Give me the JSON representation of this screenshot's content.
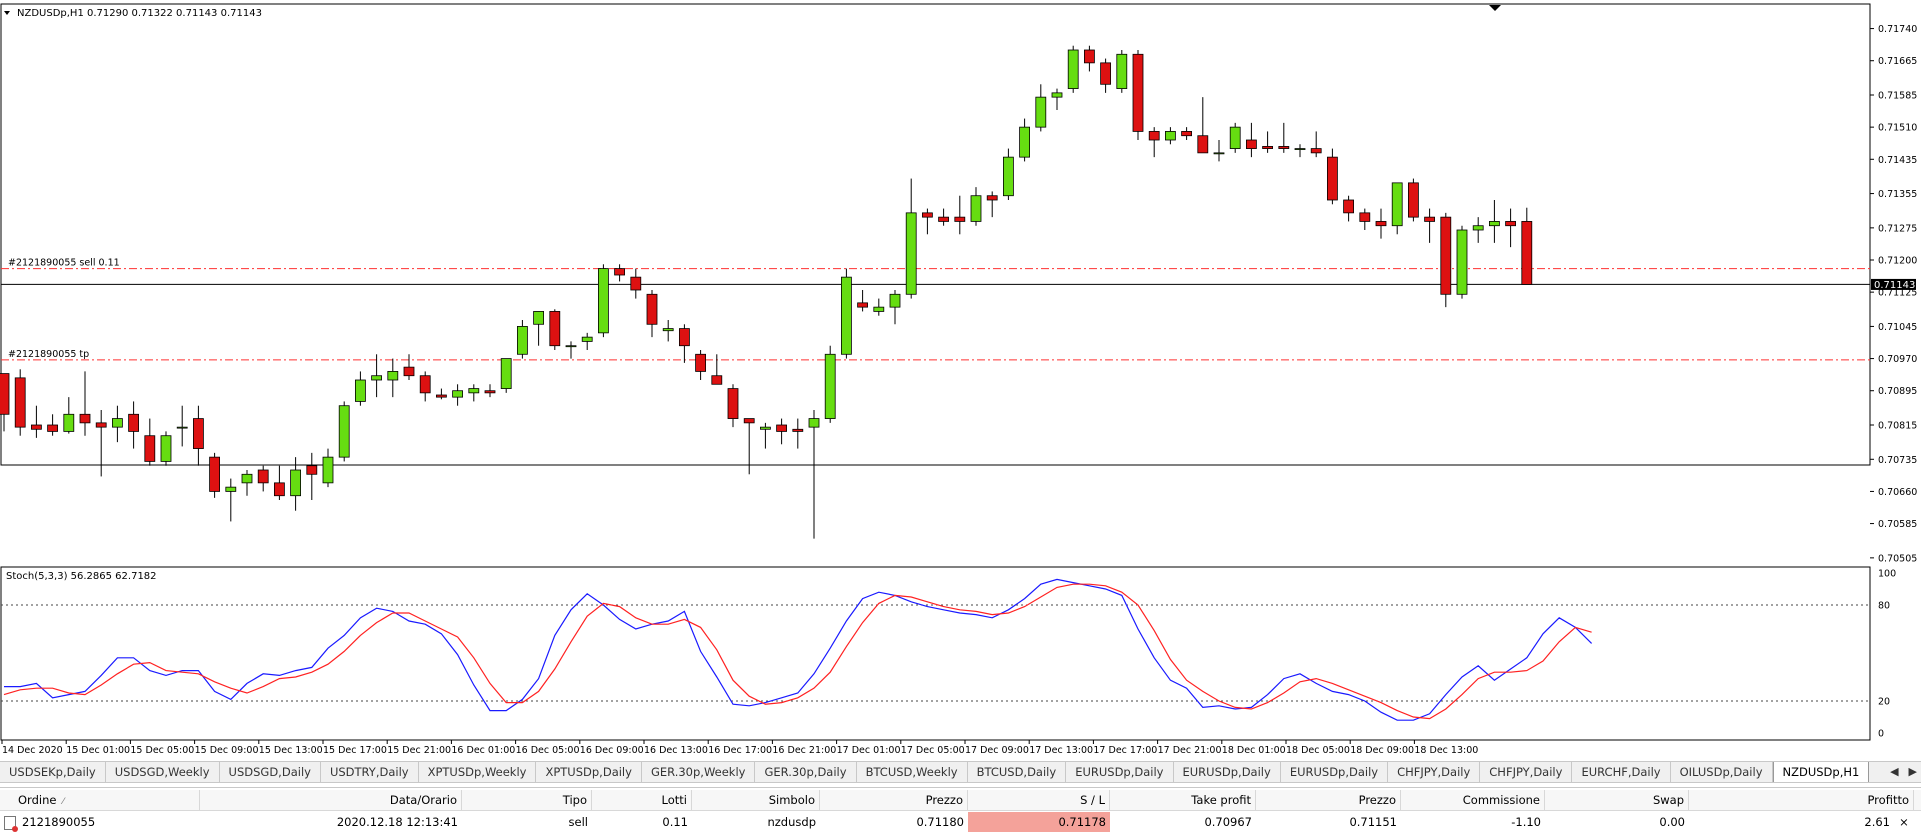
{
  "chart": {
    "symbol_header": "NZDUSDp,H1  0.71290 0.71322 0.71143 0.71143",
    "order_line_label": "#2121890055 sell 0.11",
    "tp_line_label": "#2121890055 tp",
    "current_price_label": "0.71143",
    "price_axis_labels": [
      "0.71740",
      "0.71665",
      "0.71585",
      "0.71510",
      "0.71435",
      "0.71355",
      "0.71275",
      "0.71200",
      "0.71125",
      "0.71045",
      "0.70970",
      "0.70895",
      "0.70815",
      "0.70735",
      "0.70660",
      "0.70585",
      "0.70505"
    ],
    "stoch_header": "Stoch(5,3,3) 56.2865 62.7182",
    "stoch_axis_labels": [
      "100",
      "80",
      "20",
      "0"
    ],
    "time_labels": [
      "14 Dec 2020",
      "15 Dec 01:00",
      "15 Dec 05:00",
      "15 Dec 09:00",
      "15 Dec 13:00",
      "15 Dec 17:00",
      "15 Dec 21:00",
      "16 Dec 01:00",
      "16 Dec 05:00",
      "16 Dec 09:00",
      "16 Dec 13:00",
      "16 Dec 17:00",
      "16 Dec 21:00",
      "17 Dec 01:00",
      "17 Dec 05:00",
      "17 Dec 09:00",
      "17 Dec 13:00",
      "17 Dec 17:00",
      "17 Dec 21:00",
      "18 Dec 01:00",
      "18 Dec 05:00",
      "18 Dec 09:00",
      "18 Dec 13:00"
    ],
    "colors": {
      "bull": "#66dd11",
      "bear": "#dd1111",
      "main_line": "#1a1aff",
      "signal_line": "#ff2222",
      "order_line": "#ff3030"
    },
    "sell_price": 0.7118,
    "tp_price": 0.70967,
    "last_price": 0.71143,
    "bars": [
      [
        0.70935,
        0.70935,
        0.708,
        0.7084
      ],
      [
        0.70925,
        0.70945,
        0.7079,
        0.7081
      ],
      [
        0.70815,
        0.7086,
        0.70785,
        0.70805
      ],
      [
        0.70815,
        0.7084,
        0.7079,
        0.708
      ],
      [
        0.708,
        0.7088,
        0.70795,
        0.7084
      ],
      [
        0.7084,
        0.7094,
        0.7079,
        0.7082
      ],
      [
        0.7082,
        0.7085,
        0.70695,
        0.7081
      ],
      [
        0.7081,
        0.7086,
        0.70775,
        0.7083
      ],
      [
        0.7084,
        0.7087,
        0.7076,
        0.708
      ],
      [
        0.7079,
        0.7083,
        0.7072,
        0.7073
      ],
      [
        0.7073,
        0.708,
        0.7072,
        0.7079
      ],
      [
        0.7081,
        0.7086,
        0.70765,
        0.7081
      ],
      [
        0.7083,
        0.7086,
        0.7072,
        0.7076
      ],
      [
        0.7074,
        0.7075,
        0.70645,
        0.7066
      ],
      [
        0.7066,
        0.7069,
        0.7059,
        0.7067
      ],
      [
        0.7068,
        0.7071,
        0.7065,
        0.707
      ],
      [
        0.7071,
        0.7072,
        0.7066,
        0.7068
      ],
      [
        0.7068,
        0.7072,
        0.7064,
        0.7065
      ],
      [
        0.7065,
        0.7074,
        0.70615,
        0.7071
      ],
      [
        0.7072,
        0.7075,
        0.7064,
        0.707
      ],
      [
        0.7068,
        0.7076,
        0.7067,
        0.7074
      ],
      [
        0.7074,
        0.7087,
        0.7073,
        0.7086
      ],
      [
        0.7087,
        0.7094,
        0.7086,
        0.7092
      ],
      [
        0.7092,
        0.7098,
        0.7088,
        0.7093
      ],
      [
        0.7092,
        0.7097,
        0.7088,
        0.7094
      ],
      [
        0.7095,
        0.7098,
        0.7092,
        0.7093
      ],
      [
        0.7093,
        0.7094,
        0.7087,
        0.7089
      ],
      [
        0.70885,
        0.709,
        0.70875,
        0.7088
      ],
      [
        0.7088,
        0.7091,
        0.7086,
        0.70895
      ],
      [
        0.7089,
        0.7091,
        0.7087,
        0.709
      ],
      [
        0.70895,
        0.7091,
        0.7088,
        0.7089
      ],
      [
        0.709,
        0.7097,
        0.7089,
        0.7097
      ],
      [
        0.7098,
        0.7106,
        0.7097,
        0.71045
      ],
      [
        0.7105,
        0.7108,
        0.71,
        0.7108
      ],
      [
        0.7108,
        0.71085,
        0.7099,
        0.71
      ],
      [
        0.71,
        0.7101,
        0.7097,
        0.71
      ],
      [
        0.7101,
        0.7103,
        0.7099,
        0.7102
      ],
      [
        0.7103,
        0.7119,
        0.7102,
        0.7118
      ],
      [
        0.7118,
        0.7119,
        0.7115,
        0.71165
      ],
      [
        0.7116,
        0.7118,
        0.7111,
        0.7113
      ],
      [
        0.7112,
        0.7113,
        0.7102,
        0.7105
      ],
      [
        0.71035,
        0.7106,
        0.7101,
        0.7104
      ],
      [
        0.7104,
        0.7105,
        0.7096,
        0.71
      ],
      [
        0.7098,
        0.7099,
        0.7092,
        0.7094
      ],
      [
        0.7093,
        0.7098,
        0.7091,
        0.7091
      ],
      [
        0.709,
        0.7091,
        0.7081,
        0.7083
      ],
      [
        0.7083,
        0.7083,
        0.707,
        0.7082
      ],
      [
        0.70805,
        0.7082,
        0.7076,
        0.7081
      ],
      [
        0.70815,
        0.7083,
        0.7077,
        0.708
      ],
      [
        0.70805,
        0.7083,
        0.7076,
        0.708
      ],
      [
        0.7081,
        0.7085,
        0.7055,
        0.7083
      ],
      [
        0.7083,
        0.71,
        0.7082,
        0.7098
      ],
      [
        0.7098,
        0.7118,
        0.7097,
        0.7116
      ],
      [
        0.711,
        0.7113,
        0.7108,
        0.7109
      ],
      [
        0.7108,
        0.7111,
        0.7107,
        0.7109
      ],
      [
        0.7109,
        0.7113,
        0.7105,
        0.7112
      ],
      [
        0.7112,
        0.7139,
        0.7111,
        0.7131
      ],
      [
        0.7131,
        0.7132,
        0.7126,
        0.713
      ],
      [
        0.713,
        0.7132,
        0.7128,
        0.7129
      ],
      [
        0.713,
        0.7135,
        0.7126,
        0.7129
      ],
      [
        0.7129,
        0.7137,
        0.7128,
        0.7135
      ],
      [
        0.7135,
        0.7136,
        0.713,
        0.7134
      ],
      [
        0.7135,
        0.7146,
        0.7134,
        0.7144
      ],
      [
        0.7144,
        0.7153,
        0.7143,
        0.7151
      ],
      [
        0.7151,
        0.7161,
        0.715,
        0.7158
      ],
      [
        0.7158,
        0.716,
        0.7155,
        0.7159
      ],
      [
        0.716,
        0.717,
        0.7159,
        0.7169
      ],
      [
        0.7169,
        0.717,
        0.7164,
        0.7166
      ],
      [
        0.7166,
        0.7167,
        0.7159,
        0.7161
      ],
      [
        0.716,
        0.7169,
        0.7159,
        0.7168
      ],
      [
        0.7168,
        0.7169,
        0.7148,
        0.715
      ],
      [
        0.715,
        0.7151,
        0.7144,
        0.7148
      ],
      [
        0.7148,
        0.7151,
        0.7147,
        0.715
      ],
      [
        0.715,
        0.7151,
        0.7148,
        0.7149
      ],
      [
        0.7149,
        0.7158,
        0.7146,
        0.7145
      ],
      [
        0.7145,
        0.7148,
        0.7143,
        0.7145
      ],
      [
        0.7146,
        0.7152,
        0.7145,
        0.7151
      ],
      [
        0.7148,
        0.7152,
        0.7144,
        0.7146
      ],
      [
        0.71465,
        0.715,
        0.7145,
        0.7146
      ],
      [
        0.71465,
        0.7152,
        0.7145,
        0.7146
      ],
      [
        0.7146,
        0.7147,
        0.7144,
        0.7146
      ],
      [
        0.7146,
        0.715,
        0.7144,
        0.7145
      ],
      [
        0.7144,
        0.7146,
        0.7133,
        0.7134
      ],
      [
        0.7134,
        0.7135,
        0.7129,
        0.7131
      ],
      [
        0.7131,
        0.7132,
        0.7127,
        0.7129
      ],
      [
        0.7129,
        0.7132,
        0.7125,
        0.7128
      ],
      [
        0.7128,
        0.7137,
        0.7126,
        0.7138
      ],
      [
        0.7138,
        0.7139,
        0.7129,
        0.713
      ],
      [
        0.713,
        0.7132,
        0.7124,
        0.7129
      ],
      [
        0.713,
        0.7131,
        0.7109,
        0.7112
      ],
      [
        0.7112,
        0.7128,
        0.7111,
        0.7127
      ],
      [
        0.7127,
        0.713,
        0.7124,
        0.7128
      ],
      [
        0.7128,
        0.7134,
        0.7124,
        0.7129
      ],
      [
        0.7129,
        0.7132,
        0.7123,
        0.7128
      ],
      [
        0.7129,
        0.71322,
        0.71143,
        0.71143
      ]
    ],
    "stoch_main": [
      29,
      29,
      31,
      22,
      24,
      26,
      36,
      47,
      47,
      39,
      36,
      39,
      39,
      26,
      21,
      31,
      37,
      36,
      39,
      41,
      53,
      61,
      72,
      78,
      76,
      70,
      68,
      62,
      49,
      30,
      14,
      14,
      21,
      34,
      61,
      77,
      87,
      80,
      71,
      65,
      68,
      70,
      76,
      51,
      35,
      18,
      17,
      19,
      22,
      25,
      37,
      53,
      70,
      84,
      88,
      86,
      82,
      79,
      77,
      75,
      74,
      72,
      77,
      84,
      93,
      96,
      94,
      92,
      90,
      86,
      65,
      47,
      33,
      28,
      16,
      17,
      15,
      16,
      24,
      34,
      37,
      31,
      26,
      24,
      20,
      13,
      8,
      8,
      12,
      24,
      35,
      42,
      33,
      40,
      47,
      62,
      72,
      66,
      56
    ],
    "stoch_signal": [
      24,
      27,
      28,
      28,
      25,
      24,
      30,
      37,
      43,
      44,
      39,
      38,
      37,
      32,
      28,
      25,
      29,
      34,
      35,
      38,
      43,
      51,
      61,
      69,
      75,
      75,
      70,
      65,
      60,
      47,
      31,
      19,
      19,
      26,
      40,
      57,
      73,
      81,
      79,
      72,
      68,
      68,
      71,
      66,
      52,
      33,
      23,
      18,
      19,
      22,
      28,
      38,
      54,
      69,
      81,
      86,
      85,
      82,
      79,
      77,
      76,
      74,
      75,
      79,
      85,
      91,
      93,
      93,
      92,
      88,
      80,
      64,
      46,
      33,
      26,
      20,
      16,
      15,
      19,
      25,
      32,
      34,
      31,
      27,
      23,
      19,
      14,
      10,
      9,
      15,
      24,
      34,
      38,
      38,
      39,
      45,
      57,
      66,
      63
    ]
  },
  "tabs": [
    "USDSEKp,Daily",
    "USDSGD,Weekly",
    "USDSGD,Daily",
    "USDTRY,Daily",
    "XPTUSDp,Weekly",
    "XPTUSDp,Daily",
    "GER.30p,Weekly",
    "GER.30p,Daily",
    "BTCUSD,Weekly",
    "BTCUSD,Daily",
    "EURUSDp,Daily",
    "EURUSDp,Daily",
    "EURUSDp,Daily",
    "CHFJPY,Daily",
    "CHFJPY,Daily",
    "EURCHF,Daily",
    "OILUSDp,Daily",
    "NZDUSDp,H1"
  ],
  "active_tab": "NZDUSDp,H1",
  "terminal": {
    "headers": {
      "order": "Ordine",
      "time": "Data/Orario",
      "type": "Tipo",
      "lots": "Lotti",
      "symbol": "Simbolo",
      "price": "Prezzo",
      "sl": "S / L",
      "tp": "Take profit",
      "cur_price": "Prezzo",
      "commission": "Commissione",
      "swap": "Swap",
      "profit": "Profitto"
    },
    "row": {
      "order": "2121890055",
      "time": "2020.12.18 12:13:41",
      "type": "sell",
      "lots": "0.11",
      "symbol": "nzdusdp",
      "price": "0.71180",
      "sl": "0.71178",
      "tp": "0.70967",
      "cur_price": "0.71151",
      "commission": "-1.10",
      "swap": "0.00",
      "profit": "2.61"
    }
  }
}
